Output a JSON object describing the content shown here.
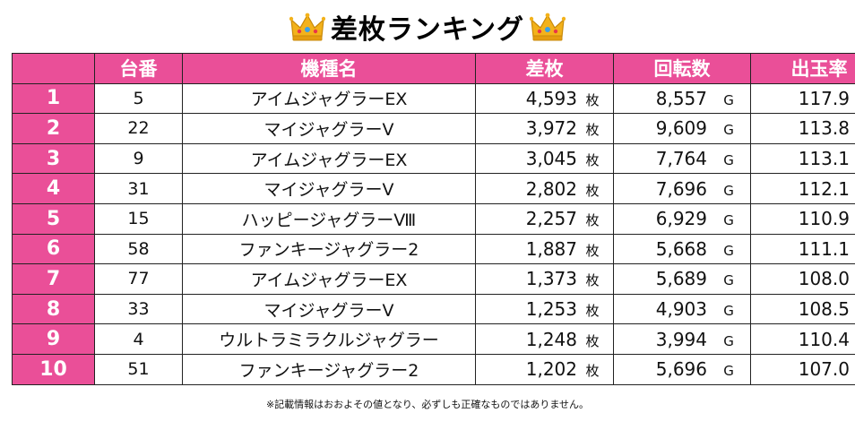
{
  "title": "差枚ランキング",
  "headers": [
    "",
    "台番",
    "機種名",
    "差枚",
    "回転数",
    "出玉率"
  ],
  "units": {
    "sa": "枚",
    "kai": "G",
    "rate": "%"
  },
  "rows": [
    {
      "rank": "1",
      "dai": "5",
      "name": "アイムジャグラーEX",
      "sa": "4,593",
      "kai": "8,557",
      "rate": "117.9"
    },
    {
      "rank": "2",
      "dai": "22",
      "name": "マイジャグラーV",
      "sa": "3,972",
      "kai": "9,609",
      "rate": "113.8"
    },
    {
      "rank": "3",
      "dai": "9",
      "name": "アイムジャグラーEX",
      "sa": "3,045",
      "kai": "7,764",
      "rate": "113.1"
    },
    {
      "rank": "4",
      "dai": "31",
      "name": "マイジャグラーV",
      "sa": "2,802",
      "kai": "7,696",
      "rate": "112.1"
    },
    {
      "rank": "5",
      "dai": "15",
      "name": "ハッピージャグラーⅧ",
      "sa": "2,257",
      "kai": "6,929",
      "rate": "110.9"
    },
    {
      "rank": "6",
      "dai": "58",
      "name": "ファンキージャグラー2",
      "sa": "1,887",
      "kai": "5,668",
      "rate": "111.1"
    },
    {
      "rank": "7",
      "dai": "77",
      "name": "アイムジャグラーEX",
      "sa": "1,373",
      "kai": "5,689",
      "rate": "108.0"
    },
    {
      "rank": "8",
      "dai": "33",
      "name": "マイジャグラーV",
      "sa": "1,253",
      "kai": "4,903",
      "rate": "108.5"
    },
    {
      "rank": "9",
      "dai": "4",
      "name": "ウルトラミラクルジャグラー",
      "sa": "1,248",
      "kai": "3,994",
      "rate": "110.4"
    },
    {
      "rank": "10",
      "dai": "51",
      "name": "ファンキージャグラー2",
      "sa": "1,202",
      "kai": "5,696",
      "rate": "107.0"
    }
  ],
  "note": "※記載情報はおおよその値となり、必ずしも正確なものではありません。",
  "colors": {
    "header_bg": "#ea4f98",
    "header_text": "#ffffff",
    "border": "#222222",
    "crown_gold": "#f3b21b"
  },
  "icons": {
    "left": "crown-icon",
    "right": "crown-icon"
  }
}
